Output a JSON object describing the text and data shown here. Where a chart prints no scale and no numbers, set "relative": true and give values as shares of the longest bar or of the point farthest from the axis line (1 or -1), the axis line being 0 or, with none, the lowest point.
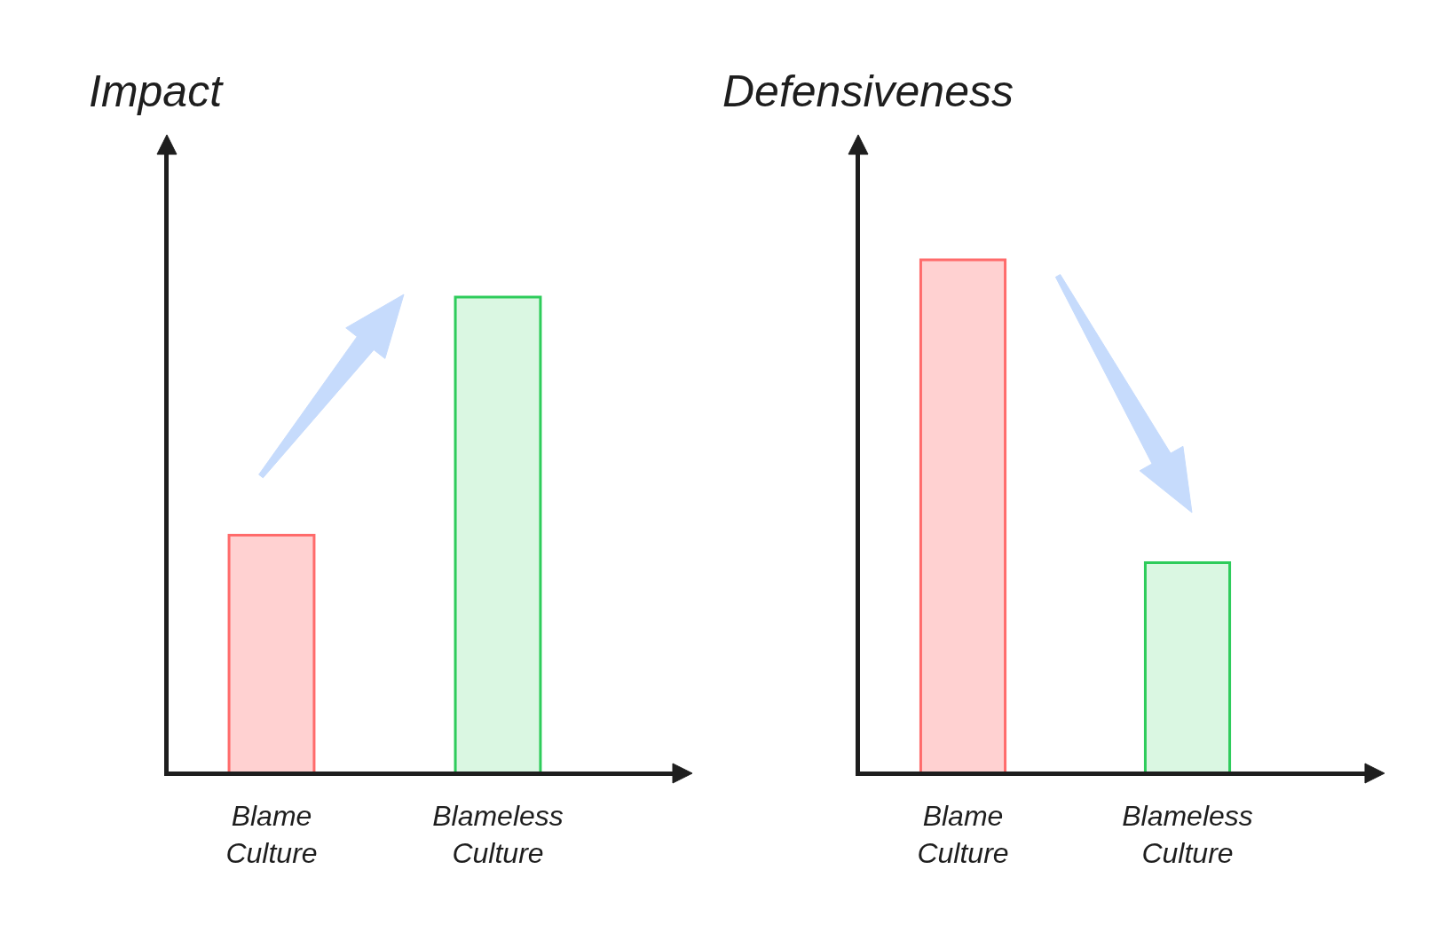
{
  "chart_data": [
    {
      "type": "bar",
      "ylabel": "Impact",
      "categories": [
        "Blame\nCulture",
        "Blameless\nCulture"
      ],
      "values": [
        0.5,
        1
      ],
      "colors": [
        "#ff6b6b",
        "#2ecc5b"
      ],
      "relative": true
    },
    {
      "type": "bar",
      "ylabel": "Defensiveness",
      "categories": [
        "Blame\nCulture",
        "Blameless\nCulture"
      ],
      "values": [
        1,
        0.41
      ],
      "colors": [
        "#ff6b6b",
        "#2ecc5b"
      ],
      "relative": true
    }
  ]
}
